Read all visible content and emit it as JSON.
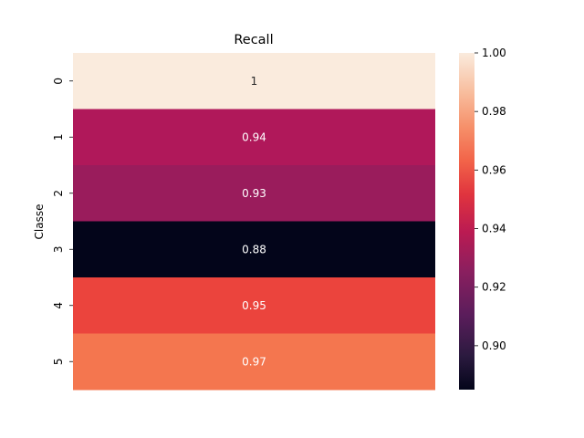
{
  "chart_data": {
    "type": "heatmap",
    "title": "Recall",
    "xlabel": "",
    "ylabel": "Classe",
    "rows": [
      "0",
      "1",
      "2",
      "3",
      "4",
      "5"
    ],
    "values": [
      1.0,
      0.94,
      0.93,
      0.88,
      0.95,
      0.97
    ],
    "cell_labels": [
      "1",
      "0.94",
      "0.93",
      "0.88",
      "0.95",
      "0.97"
    ],
    "colormap": "rocket",
    "colorbar": {
      "vmin": 0.885,
      "vmax": 1.0,
      "ticks": [
        0.9,
        0.92,
        0.94,
        0.96,
        0.98,
        1.0
      ],
      "tick_labels": [
        "0.90",
        "0.92",
        "0.94",
        "0.96",
        "0.98",
        "1.00"
      ]
    },
    "cell_colors": [
      "#faebdd",
      "#b0185a",
      "#9a1c5c",
      "#03051a",
      "#eb443d",
      "#f4764f"
    ],
    "annotation_colors": [
      "#262626",
      "#ffffff",
      "#ffffff",
      "#ffffff",
      "#ffffff",
      "#ffffff"
    ]
  }
}
